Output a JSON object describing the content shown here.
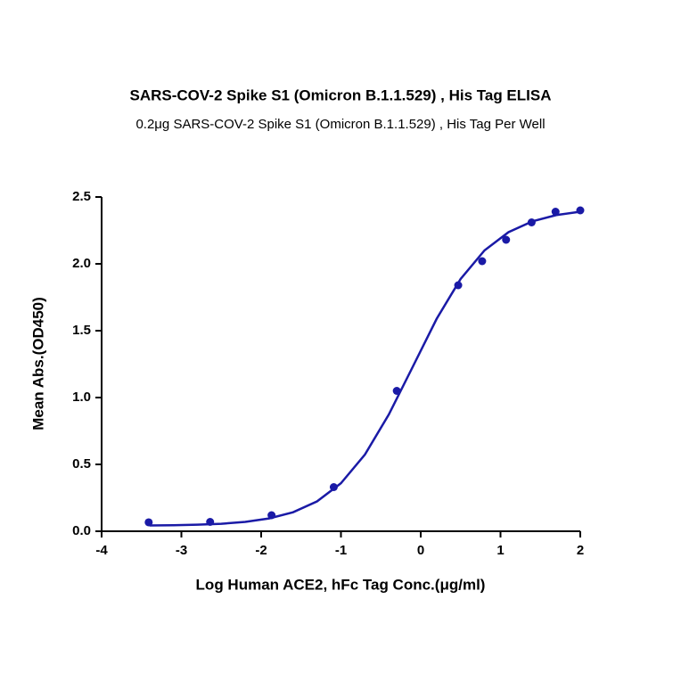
{
  "chart_data": {
    "type": "scatter",
    "title": "SARS-COV-2 Spike S1 (Omicron B.1.1.529) , His Tag ELISA",
    "subtitle": "0.2μg SARS-COV-2 Spike S1 (Omicron B.1.1.529) , His Tag Per Well",
    "x_label": "Log Human ACE2, hFc Tag Conc.(μg/ml)",
    "y_label": "Mean Abs.(OD450)",
    "xlim": [
      -4,
      2
    ],
    "xticks": [
      -4,
      -3,
      -2,
      -1,
      0,
      1,
      2
    ],
    "ylim": [
      0,
      2.5
    ],
    "yticks": [
      {
        "value": 0,
        "label": "0.0"
      },
      {
        "value": 0.5,
        "label": "0.5"
      },
      {
        "value": 1,
        "label": "1.0"
      },
      {
        "value": 1.5,
        "label": "1.5"
      },
      {
        "value": 2,
        "label": "2.0"
      },
      {
        "value": 2.5,
        "label": "2.5"
      }
    ],
    "series": [
      {
        "type": "scatter",
        "color": "#1a1aa6",
        "x": [
          -3.41,
          -2.64,
          -1.87,
          -1.09,
          -0.3,
          0.47,
          0.77,
          1.07,
          1.39,
          1.69,
          2.0
        ],
        "values": [
          0.067,
          0.07,
          0.12,
          0.33,
          1.05,
          1.84,
          2.02,
          2.18,
          2.31,
          2.39,
          2.4
        ]
      },
      {
        "type": "line",
        "color": "#1a1aa6",
        "x": [
          -3.4,
          -3.1,
          -2.8,
          -2.5,
          -2.2,
          -1.9,
          -1.6,
          -1.3,
          -1.0,
          -0.7,
          -0.4,
          -0.1,
          0.2,
          0.5,
          0.8,
          1.1,
          1.4,
          1.7,
          2.0
        ],
        "values": [
          0.043,
          0.045,
          0.049,
          0.056,
          0.07,
          0.096,
          0.142,
          0.223,
          0.359,
          0.573,
          0.873,
          1.23,
          1.589,
          1.887,
          2.101,
          2.237,
          2.318,
          2.365,
          2.39
        ]
      }
    ]
  }
}
